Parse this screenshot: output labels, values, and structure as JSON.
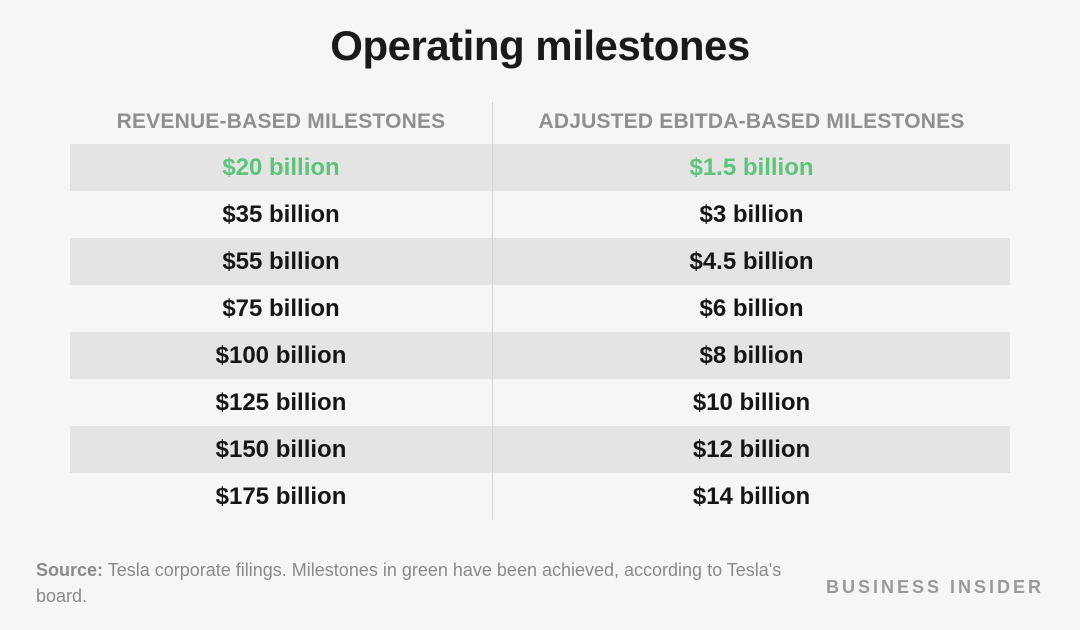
{
  "title": "Operating milestones",
  "columns": {
    "left_header": "REVENUE-BASED MILESTONES",
    "right_header": "ADJUSTED EBITDA-BASED MILESTONES"
  },
  "rows": [
    {
      "revenue": "$20 billion",
      "ebitda": "$1.5 billion",
      "achieved": true
    },
    {
      "revenue": "$35 billion",
      "ebitda": "$3 billion",
      "achieved": false
    },
    {
      "revenue": "$55 billion",
      "ebitda": "$4.5 billion",
      "achieved": false
    },
    {
      "revenue": "$75 billion",
      "ebitda": "$6 billion",
      "achieved": false
    },
    {
      "revenue": "$100 billion",
      "ebitda": "$8 billion",
      "achieved": false
    },
    {
      "revenue": "$125 billion",
      "ebitda": "$10 billion",
      "achieved": false
    },
    {
      "revenue": "$150 billion",
      "ebitda": "$12 billion",
      "achieved": false
    },
    {
      "revenue": "$175 billion",
      "ebitda": "$14 billion",
      "achieved": false
    }
  ],
  "source": {
    "label": "Source:",
    "text": "Tesla corporate filings. Milestones in green have been achieved, according to Tesla's board."
  },
  "logo": "BUSINESS INSIDER",
  "colors": {
    "achieved": "#5dc47a",
    "shaded_row": "#e4e4e4",
    "background": "#f6f6f6"
  },
  "chart_data": {
    "type": "table",
    "title": "Operating milestones",
    "columns": [
      "REVENUE-BASED MILESTONES",
      "ADJUSTED EBITDA-BASED MILESTONES"
    ],
    "rows": [
      [
        "$20 billion",
        "$1.5 billion"
      ],
      [
        "$35 billion",
        "$3 billion"
      ],
      [
        "$55 billion",
        "$4.5 billion"
      ],
      [
        "$75 billion",
        "$6 billion"
      ],
      [
        "$100 billion",
        "$8 billion"
      ],
      [
        "$125 billion",
        "$10 billion"
      ],
      [
        "$150 billion",
        "$12 billion"
      ],
      [
        "$175 billion",
        "$14 billion"
      ]
    ],
    "achieved_rows": [
      0
    ]
  }
}
